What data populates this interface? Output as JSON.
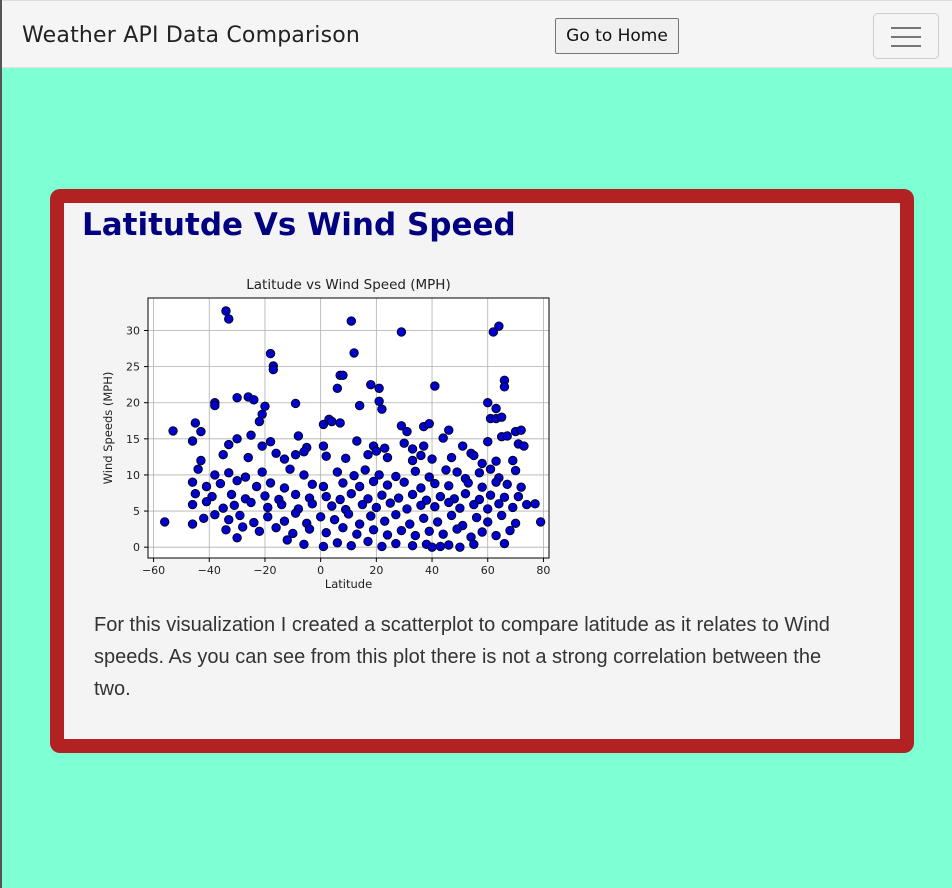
{
  "navbar": {
    "brand": "Weather API Data Comparison",
    "home_button": "Go to Home",
    "menu_icon": "hamburger-menu-icon"
  },
  "card": {
    "title": "Latitutde Vs Wind Speed",
    "description": "For this visualization I created a scatterplot to compare latitude as it relates to Wind speeds. As you can see from this plot there is not a strong correlation between the two."
  },
  "colors": {
    "page_background": "#7fffd4",
    "card_border": "#b22222",
    "title": "#000080",
    "marker": "#0000cd"
  },
  "chart_data": {
    "type": "scatter",
    "title": "Latitude vs Wind Speed (MPH)",
    "xlabel": "Latitude",
    "ylabel": "Wind Speeds (MPH)",
    "xlim": [
      -62,
      82
    ],
    "ylim": [
      -1.5,
      34.5
    ],
    "xticks": [
      "−60",
      "−40",
      "−20",
      "0",
      "20",
      "40",
      "60",
      "80"
    ],
    "xtick_values": [
      -60,
      -40,
      -20,
      0,
      20,
      40,
      60,
      80
    ],
    "yticks": [
      "0",
      "5",
      "10",
      "15",
      "20",
      "25",
      "30"
    ],
    "ytick_values": [
      0,
      5,
      10,
      15,
      20,
      25,
      30
    ],
    "grid": true,
    "points": [
      [
        -34,
        32.7
      ],
      [
        -33,
        31.6
      ],
      [
        11,
        31.3
      ],
      [
        29,
        29.8
      ],
      [
        62,
        29.8
      ],
      [
        64,
        30.6
      ],
      [
        -18,
        26.8
      ],
      [
        -17,
        25.1
      ],
      [
        -17,
        24.6
      ],
      [
        12,
        26.9
      ],
      [
        66,
        23.1
      ],
      [
        66,
        22.2
      ],
      [
        7,
        23.8
      ],
      [
        8,
        23.8
      ],
      [
        6,
        22.0
      ],
      [
        18,
        22.5
      ],
      [
        21,
        22.0
      ],
      [
        41,
        22.3
      ],
      [
        -38,
        20.0
      ],
      [
        -38,
        19.6
      ],
      [
        -30,
        20.7
      ],
      [
        -26,
        20.8
      ],
      [
        -24,
        20.4
      ],
      [
        -20,
        19.5
      ],
      [
        -21,
        18.4
      ],
      [
        -9,
        19.9
      ],
      [
        14,
        19.6
      ],
      [
        21,
        20.2
      ],
      [
        22,
        19.1
      ],
      [
        60,
        20.0
      ],
      [
        63,
        19.2
      ],
      [
        -53,
        16.1
      ],
      [
        -45,
        17.2
      ],
      [
        -43,
        16.0
      ],
      [
        -22,
        17.4
      ],
      [
        1,
        17.0
      ],
      [
        3,
        17.7
      ],
      [
        4,
        17.4
      ],
      [
        7,
        17.2
      ],
      [
        29,
        16.8
      ],
      [
        31,
        16.0
      ],
      [
        37,
        16.7
      ],
      [
        39,
        17.1
      ],
      [
        61,
        17.8
      ],
      [
        63,
        17.8
      ],
      [
        65,
        18.0
      ],
      [
        70,
        16.0
      ],
      [
        72,
        16.2
      ],
      [
        -46,
        14.7
      ],
      [
        -33,
        14.2
      ],
      [
        -30,
        15.0
      ],
      [
        -25,
        15.5
      ],
      [
        -21,
        14.0
      ],
      [
        -18,
        14.6
      ],
      [
        -8,
        15.4
      ],
      [
        -5,
        13.8
      ],
      [
        1,
        14.0
      ],
      [
        13,
        14.7
      ],
      [
        19,
        14.0
      ],
      [
        23,
        13.7
      ],
      [
        30,
        14.4
      ],
      [
        33,
        13.6
      ],
      [
        37,
        14.0
      ],
      [
        44,
        15.1
      ],
      [
        46,
        16.2
      ],
      [
        51,
        14.0
      ],
      [
        54,
        13.0
      ],
      [
        60,
        14.6
      ],
      [
        65,
        15.3
      ],
      [
        67,
        15.4
      ],
      [
        71,
        14.3
      ],
      [
        73,
        14.0
      ],
      [
        -43,
        12.0
      ],
      [
        -35,
        12.8
      ],
      [
        -26,
        12.4
      ],
      [
        -16,
        13.0
      ],
      [
        -13,
        12.2
      ],
      [
        -9,
        12.8
      ],
      [
        -6,
        13.2
      ],
      [
        2,
        12.6
      ],
      [
        9,
        12.3
      ],
      [
        17,
        12.8
      ],
      [
        20,
        13.3
      ],
      [
        24,
        12.4
      ],
      [
        33,
        12.0
      ],
      [
        36,
        12.7
      ],
      [
        40,
        12.2
      ],
      [
        47,
        12.4
      ],
      [
        55,
        12.7
      ],
      [
        58,
        11.6
      ],
      [
        63,
        11.9
      ],
      [
        69,
        12.0
      ],
      [
        -44,
        10.8
      ],
      [
        -38,
        10.0
      ],
      [
        -33,
        10.3
      ],
      [
        -27,
        9.7
      ],
      [
        -21,
        10.4
      ],
      [
        -11,
        10.8
      ],
      [
        -6,
        10.0
      ],
      [
        6,
        10.4
      ],
      [
        12,
        9.9
      ],
      [
        16,
        10.7
      ],
      [
        21,
        10.0
      ],
      [
        27,
        9.8
      ],
      [
        34,
        10.5
      ],
      [
        39,
        9.7
      ],
      [
        45,
        10.7
      ],
      [
        49,
        10.4
      ],
      [
        52,
        9.5
      ],
      [
        57,
        10.3
      ],
      [
        61,
        10.8
      ],
      [
        64,
        9.6
      ],
      [
        70,
        10.6
      ],
      [
        -46,
        9.0
      ],
      [
        -41,
        8.4
      ],
      [
        -36,
        8.8
      ],
      [
        -30,
        9.2
      ],
      [
        -23,
        8.4
      ],
      [
        -18,
        8.9
      ],
      [
        -13,
        8.2
      ],
      [
        -3,
        8.7
      ],
      [
        1,
        8.4
      ],
      [
        8,
        8.9
      ],
      [
        14,
        8.4
      ],
      [
        19,
        9.1
      ],
      [
        24,
        8.6
      ],
      [
        30,
        9.0
      ],
      [
        36,
        8.2
      ],
      [
        41,
        8.8
      ],
      [
        46,
        8.5
      ],
      [
        53,
        8.9
      ],
      [
        58,
        8.3
      ],
      [
        63,
        9.0
      ],
      [
        67,
        8.7
      ],
      [
        72,
        8.3
      ],
      [
        -45,
        7.4
      ],
      [
        -39,
        7.0
      ],
      [
        -32,
        7.3
      ],
      [
        -27,
        6.7
      ],
      [
        -20,
        7.1
      ],
      [
        -15,
        6.6
      ],
      [
        -9,
        7.3
      ],
      [
        -4,
        6.8
      ],
      [
        2,
        7.0
      ],
      [
        7,
        6.6
      ],
      [
        11,
        7.4
      ],
      [
        17,
        6.7
      ],
      [
        22,
        7.2
      ],
      [
        28,
        6.8
      ],
      [
        33,
        7.3
      ],
      [
        38,
        6.5
      ],
      [
        43,
        7.0
      ],
      [
        48,
        6.7
      ],
      [
        52,
        7.4
      ],
      [
        57,
        6.6
      ],
      [
        61,
        7.2
      ],
      [
        66,
        6.9
      ],
      [
        71,
        7.0
      ],
      [
        77,
        6.0
      ],
      [
        -46,
        5.9
      ],
      [
        -41,
        6.3
      ],
      [
        -35,
        5.4
      ],
      [
        -31,
        5.8
      ],
      [
        -25,
        6.2
      ],
      [
        -19,
        5.5
      ],
      [
        -14,
        5.9
      ],
      [
        -8,
        5.3
      ],
      [
        -3,
        6.0
      ],
      [
        4,
        5.7
      ],
      [
        9,
        5.2
      ],
      [
        15,
        5.9
      ],
      [
        20,
        5.5
      ],
      [
        25,
        6.1
      ],
      [
        31,
        5.3
      ],
      [
        36,
        5.8
      ],
      [
        41,
        5.6
      ],
      [
        46,
        6.2
      ],
      [
        50,
        5.4
      ],
      [
        55,
        5.9
      ],
      [
        60,
        5.3
      ],
      [
        64,
        6.0
      ],
      [
        69,
        5.5
      ],
      [
        74,
        5.9
      ],
      [
        -56,
        3.5
      ],
      [
        -46,
        3.2
      ],
      [
        -42,
        4.0
      ],
      [
        -38,
        4.5
      ],
      [
        -33,
        3.8
      ],
      [
        -29,
        4.4
      ],
      [
        -24,
        3.4
      ],
      [
        -19,
        4.2
      ],
      [
        -13,
        3.6
      ],
      [
        -9,
        4.7
      ],
      [
        -5,
        3.3
      ],
      [
        0,
        4.2
      ],
      [
        5,
        3.8
      ],
      [
        10,
        4.6
      ],
      [
        14,
        3.2
      ],
      [
        18,
        4.3
      ],
      [
        23,
        3.6
      ],
      [
        27,
        4.5
      ],
      [
        32,
        3.2
      ],
      [
        37,
        4.0
      ],
      [
        42,
        3.5
      ],
      [
        47,
        4.4
      ],
      [
        51,
        3.0
      ],
      [
        56,
        4.1
      ],
      [
        60,
        3.5
      ],
      [
        65,
        4.4
      ],
      [
        70,
        3.3
      ],
      [
        79,
        3.5
      ],
      [
        -34,
        2.4
      ],
      [
        -28,
        2.8
      ],
      [
        -22,
        2.2
      ],
      [
        -16,
        2.7
      ],
      [
        -10,
        1.9
      ],
      [
        -4,
        2.5
      ],
      [
        2,
        2.0
      ],
      [
        8,
        2.7
      ],
      [
        13,
        1.8
      ],
      [
        19,
        2.4
      ],
      [
        24,
        1.7
      ],
      [
        29,
        2.3
      ],
      [
        34,
        1.6
      ],
      [
        39,
        2.2
      ],
      [
        44,
        1.8
      ],
      [
        49,
        2.5
      ],
      [
        54,
        1.4
      ],
      [
        58,
        2.1
      ],
      [
        63,
        1.6
      ],
      [
        68,
        2.3
      ],
      [
        -30,
        1.3
      ],
      [
        -12,
        1.0
      ],
      [
        -6,
        0.4
      ],
      [
        1,
        0.1
      ],
      [
        6,
        0.6
      ],
      [
        11,
        0.2
      ],
      [
        17,
        0.8
      ],
      [
        22,
        0.1
      ],
      [
        27,
        0.5
      ],
      [
        33,
        0.2
      ],
      [
        38,
        0.4
      ],
      [
        40,
        0.0
      ],
      [
        43,
        0.1
      ],
      [
        46,
        0.3
      ],
      [
        50,
        0.0
      ],
      [
        55,
        0.4
      ],
      [
        66,
        0.5
      ]
    ]
  }
}
